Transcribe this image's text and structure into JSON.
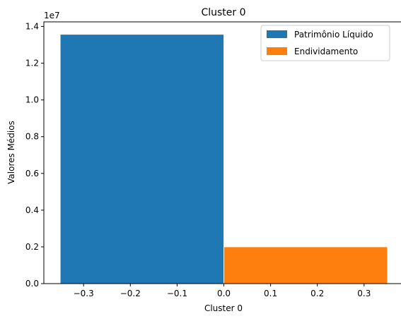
{
  "chart_data": {
    "type": "bar",
    "title": "Cluster 0",
    "xlabel": "Cluster 0",
    "ylabel": "Valores Médios",
    "y_offset_label": "1e7",
    "xlim": [
      -0.385,
      0.385
    ],
    "ylim": [
      0,
      14250000
    ],
    "x_ticks": [
      -0.3,
      -0.2,
      -0.1,
      0.0,
      0.1,
      0.2,
      0.3
    ],
    "x_tick_labels": [
      "−0.3",
      "−0.2",
      "−0.1",
      "0.0",
      "0.1",
      "0.2",
      "0.3"
    ],
    "y_ticks": [
      0,
      2000000,
      4000000,
      6000000,
      8000000,
      10000000,
      12000000,
      14000000
    ],
    "y_tick_labels": [
      "0.0",
      "0.2",
      "0.4",
      "0.6",
      "0.8",
      "1.0",
      "1.2",
      "1.4"
    ],
    "legend_position": "top-right",
    "grid": false,
    "series": [
      {
        "name": "Patrimônio Líquido",
        "color": "#1f77b4",
        "x_start": -0.35,
        "x_end": 0.0,
        "value": 13570000
      },
      {
        "name": "Endividamento",
        "color": "#ff7f0e",
        "x_start": 0.0,
        "x_end": 0.35,
        "value": 2000000
      }
    ]
  }
}
